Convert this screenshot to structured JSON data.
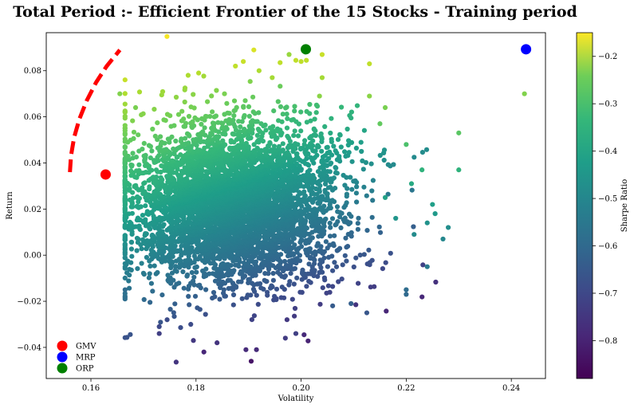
{
  "chart_data": {
    "type": "scatter",
    "title": "Total Period :- Efficient Frontier of the 15 Stocks - Training period",
    "xlabel": "Volatility",
    "ylabel": "Return",
    "colorbar_label": "Sharpe Ratio",
    "xlim": [
      0.1515,
      0.2465
    ],
    "ylim": [
      -0.0535,
      0.0965
    ],
    "xticks": [
      0.16,
      0.18,
      0.2,
      0.22,
      0.24
    ],
    "xtick_labels": [
      "0.16",
      "0.18",
      "0.20",
      "0.22",
      "0.24"
    ],
    "yticks": [
      -0.04,
      -0.02,
      0.0,
      0.02,
      0.04,
      0.06,
      0.08
    ],
    "ytick_labels": [
      "−0.04",
      "−0.02",
      "0.00",
      "0.02",
      "0.04",
      "0.06",
      "0.08"
    ],
    "colorbar_range": [
      -0.88,
      -0.15
    ],
    "colorbar_ticks": [
      -0.8,
      -0.7,
      -0.6,
      -0.5,
      -0.4,
      -0.3,
      -0.2
    ],
    "colorbar_tick_labels": [
      "−0.8",
      "−0.7",
      "−0.6",
      "−0.5",
      "−0.4",
      "−0.3",
      "−0.2"
    ],
    "colormap": "viridis",
    "grid": false,
    "legend_position": "lower-left",
    "cloud": {
      "description": "dense cloud of ~thousands of simulated portfolios",
      "center": [
        0.1865,
        0.018
      ],
      "core_volatility_range": [
        0.168,
        0.205
      ],
      "core_return_range": [
        -0.025,
        0.07
      ]
    },
    "outlier_points": [
      {
        "x": 0.1655,
        "y": 0.07,
        "c": -0.29
      },
      {
        "x": 0.1685,
        "y": 0.064,
        "c": -0.3
      },
      {
        "x": 0.1785,
        "y": 0.078,
        "c": -0.24
      },
      {
        "x": 0.1805,
        "y": 0.079,
        "c": -0.23
      },
      {
        "x": 0.1875,
        "y": 0.082,
        "c": -0.22
      },
      {
        "x": 0.189,
        "y": 0.084,
        "c": -0.21
      },
      {
        "x": 0.191,
        "y": 0.089,
        "c": -0.19
      },
      {
        "x": 0.192,
        "y": 0.08,
        "c": -0.24
      },
      {
        "x": 0.1945,
        "y": 0.077,
        "c": -0.25
      },
      {
        "x": 0.196,
        "y": 0.0835,
        "c": -0.22
      },
      {
        "x": 0.199,
        "y": 0.0845,
        "c": -0.22
      },
      {
        "x": 0.2,
        "y": 0.084,
        "c": -0.22
      },
      {
        "x": 0.201,
        "y": 0.0845,
        "c": -0.22
      },
      {
        "x": 0.204,
        "y": 0.087,
        "c": -0.21
      },
      {
        "x": 0.204,
        "y": 0.077,
        "c": -0.25
      },
      {
        "x": 0.2035,
        "y": 0.069,
        "c": -0.28
      },
      {
        "x": 0.213,
        "y": 0.083,
        "c": -0.22
      },
      {
        "x": 0.213,
        "y": 0.069,
        "c": -0.28
      },
      {
        "x": 0.216,
        "y": 0.064,
        "c": -0.3
      },
      {
        "x": 0.215,
        "y": 0.057,
        "c": -0.33
      },
      {
        "x": 0.22,
        "y": 0.048,
        "c": -0.36
      },
      {
        "x": 0.223,
        "y": 0.037,
        "c": -0.41
      },
      {
        "x": 0.23,
        "y": 0.053,
        "c": -0.34
      },
      {
        "x": 0.23,
        "y": 0.037,
        "c": -0.41
      },
      {
        "x": 0.2425,
        "y": 0.07,
        "c": -0.29
      },
      {
        "x": 0.225,
        "y": 0.022,
        "c": -0.47
      },
      {
        "x": 0.2255,
        "y": 0.018,
        "c": -0.49
      },
      {
        "x": 0.224,
        "y": 0.014,
        "c": -0.51
      },
      {
        "x": 0.228,
        "y": 0.012,
        "c": -0.52
      },
      {
        "x": 0.227,
        "y": 0.007,
        "c": -0.54
      },
      {
        "x": 0.224,
        "y": -0.005,
        "c": -0.58
      },
      {
        "x": 0.22,
        "y": -0.015,
        "c": -0.62
      },
      {
        "x": 0.22,
        "y": -0.017,
        "c": -0.63
      },
      {
        "x": 0.2215,
        "y": 0.009,
        "c": -0.53
      },
      {
        "x": 0.221,
        "y": 0.031,
        "c": -0.44
      },
      {
        "x": 0.218,
        "y": 0.016,
        "c": -0.5
      },
      {
        "x": 0.216,
        "y": 0.025,
        "c": -0.46
      },
      {
        "x": 0.1665,
        "y": -0.015,
        "c": -0.62
      },
      {
        "x": 0.1795,
        "y": -0.037,
        "c": -0.76
      },
      {
        "x": 0.1815,
        "y": -0.042,
        "c": -0.8
      },
      {
        "x": 0.184,
        "y": -0.038,
        "c": -0.77
      },
      {
        "x": 0.1895,
        "y": -0.041,
        "c": -0.79
      },
      {
        "x": 0.1905,
        "y": -0.046,
        "c": -0.84
      },
      {
        "x": 0.1915,
        "y": -0.041,
        "c": -0.79
      },
      {
        "x": 0.173,
        "y": -0.034,
        "c": -0.74
      },
      {
        "x": 0.173,
        "y": -0.031,
        "c": -0.72
      },
      {
        "x": 0.179,
        "y": -0.03,
        "c": -0.71
      },
      {
        "x": 0.197,
        "y": -0.036,
        "c": -0.75
      },
      {
        "x": 0.199,
        "y": -0.034,
        "c": -0.74
      },
      {
        "x": 0.1745,
        "y": -0.028,
        "c": -0.71
      },
      {
        "x": 0.206,
        "y": -0.022,
        "c": -0.67
      },
      {
        "x": 0.2095,
        "y": -0.021,
        "c": -0.66
      },
      {
        "x": 0.2125,
        "y": -0.025,
        "c": -0.68
      }
    ],
    "frontier": {
      "label": "efficient frontier (dashed red)",
      "color": "#ff0000",
      "points": [
        {
          "x": 0.156,
          "y": 0.036
        },
        {
          "x": 0.1562,
          "y": 0.043
        },
        {
          "x": 0.1568,
          "y": 0.051
        },
        {
          "x": 0.1578,
          "y": 0.059
        },
        {
          "x": 0.1592,
          "y": 0.067
        },
        {
          "x": 0.161,
          "y": 0.075
        },
        {
          "x": 0.163,
          "y": 0.082
        },
        {
          "x": 0.1655,
          "y": 0.089
        }
      ]
    },
    "markers": [
      {
        "name": "GMV",
        "x": 0.1628,
        "y": 0.035,
        "color": "#ff0000"
      },
      {
        "name": "MRP",
        "x": 0.2428,
        "y": 0.0893,
        "color": "#0000ff"
      },
      {
        "name": "ORP",
        "x": 0.2009,
        "y": 0.0893,
        "color": "#008000"
      }
    ],
    "legend": [
      {
        "label": "GMV",
        "color": "#ff0000"
      },
      {
        "label": "MRP",
        "color": "#0000ff"
      },
      {
        "label": "ORP",
        "color": "#008000"
      }
    ]
  }
}
